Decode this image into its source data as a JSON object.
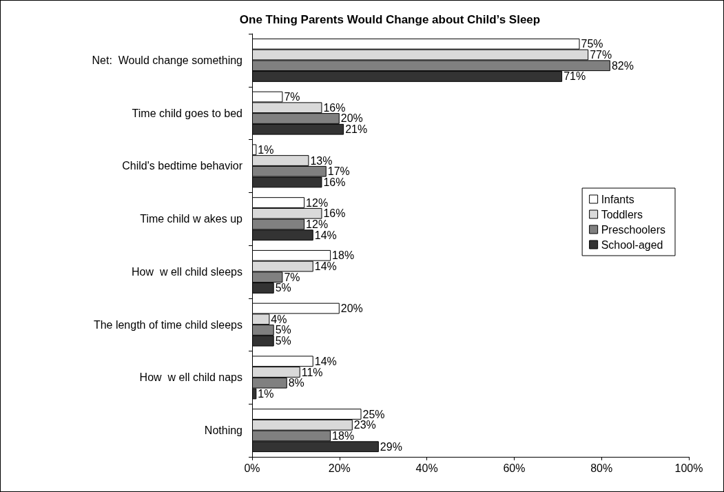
{
  "chart_data": {
    "type": "bar",
    "orientation": "horizontal",
    "title": "One Thing Parents Would Change about Child’s Sleep",
    "categories": [
      "Net:  Would change something",
      "Time child goes to bed",
      "Child's bedtime behavior",
      "Time child w akes up",
      "How  w ell child sleeps",
      "The length of time child sleeps",
      "How  w ell child naps",
      "Nothing"
    ],
    "series": [
      {
        "name": "Infants",
        "color": "#ffffff",
        "values": [
          75,
          7,
          1,
          12,
          18,
          20,
          14,
          25
        ],
        "value_labels": [
          "75%",
          "7%",
          "1%",
          "12%",
          "18%",
          "20%",
          "14%",
          "25%"
        ]
      },
      {
        "name": "Toddlers",
        "color": "#d9d9d9",
        "values": [
          77,
          16,
          13,
          16,
          14,
          4,
          11,
          23
        ],
        "value_labels": [
          "77%",
          "16%",
          "13%",
          "16%",
          "14%",
          "4%",
          "11%",
          "23%"
        ]
      },
      {
        "name": "Preschoolers",
        "color": "#808080",
        "values": [
          82,
          20,
          17,
          12,
          7,
          5,
          8,
          18
        ],
        "value_labels": [
          "82%",
          "20%",
          "17%",
          "12%",
          "7%",
          "5%",
          "8%",
          "18%"
        ]
      },
      {
        "name": "School-aged",
        "color": "#333333",
        "values": [
          71,
          21,
          16,
          14,
          5,
          5,
          1,
          29
        ],
        "value_labels": [
          "71%",
          "21%",
          "16%",
          "14%",
          "5%",
          "5%",
          "1%",
          "29%"
        ]
      }
    ],
    "xlim": [
      0,
      100
    ],
    "xticks": [
      {
        "value": 0,
        "label": "0%"
      },
      {
        "value": 20,
        "label": "20%"
      },
      {
        "value": 40,
        "label": "40%"
      },
      {
        "value": 60,
        "label": "60%"
      },
      {
        "value": 80,
        "label": "80%"
      },
      {
        "value": 100,
        "label": "100%"
      }
    ],
    "grid": false,
    "legend": "right"
  }
}
